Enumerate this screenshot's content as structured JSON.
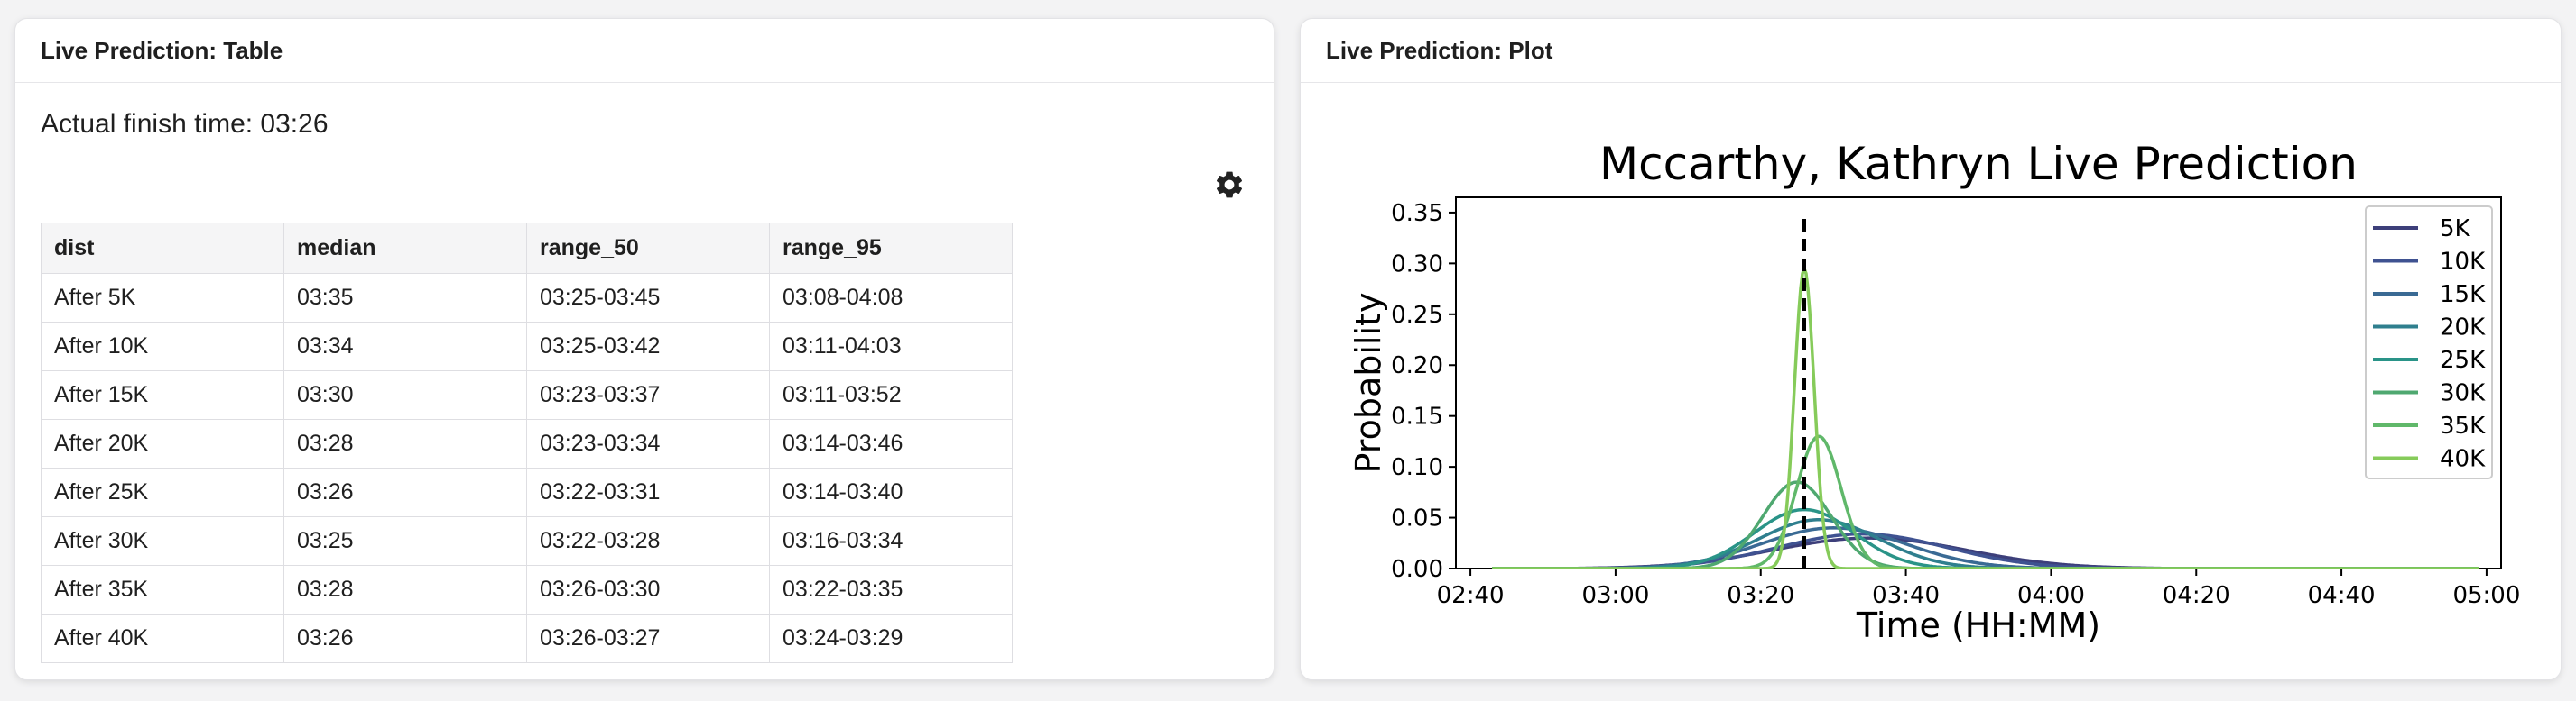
{
  "table_panel": {
    "title": "Live Prediction: Table",
    "actual_finish": "Actual finish time: 03:26",
    "settings_icon": "gear-icon",
    "columns": [
      "dist",
      "median",
      "range_50",
      "range_95"
    ],
    "rows": [
      [
        "After 5K",
        "03:35",
        "03:25-03:45",
        "03:08-04:08"
      ],
      [
        "After 10K",
        "03:34",
        "03:25-03:42",
        "03:11-04:03"
      ],
      [
        "After 15K",
        "03:30",
        "03:23-03:37",
        "03:11-03:52"
      ],
      [
        "After 20K",
        "03:28",
        "03:23-03:34",
        "03:14-03:46"
      ],
      [
        "After 25K",
        "03:26",
        "03:22-03:31",
        "03:14-03:40"
      ],
      [
        "After 30K",
        "03:25",
        "03:22-03:28",
        "03:16-03:34"
      ],
      [
        "After 35K",
        "03:28",
        "03:26-03:30",
        "03:22-03:35"
      ],
      [
        "After 40K",
        "03:26",
        "03:26-03:27",
        "03:24-03:29"
      ]
    ]
  },
  "plot_panel": {
    "title": "Live Prediction: Plot"
  },
  "chart_data": {
    "type": "line",
    "title": "Mccarthy, Kathryn Live Prediction",
    "xlabel": "Time (HH:MM)",
    "ylabel": "Probability",
    "x_unit": "minutes",
    "xlim": [
      158,
      302
    ],
    "ylim": [
      0,
      0.365
    ],
    "x_ticks": [
      160,
      180,
      200,
      220,
      240,
      260,
      280,
      300
    ],
    "x_tick_labels": [
      "02:40",
      "03:00",
      "03:20",
      "03:40",
      "04:00",
      "04:20",
      "04:40",
      "05:00"
    ],
    "y_ticks": [
      0,
      0.05,
      0.1,
      0.15,
      0.2,
      0.25,
      0.3,
      0.35
    ],
    "y_tick_labels": [
      "0.00",
      "0.05",
      "0.10",
      "0.15",
      "0.20",
      "0.25",
      "0.30",
      "0.35"
    ],
    "x_range": [
      163,
      299
    ],
    "actual_finish": 206,
    "actual_line_ymax": 0.35,
    "grid": false,
    "legend_position": "top-right",
    "series": [
      {
        "name": "5K",
        "color": "#3d3f7a",
        "center": 215,
        "peak": 0.03
      },
      {
        "name": "10K",
        "color": "#3f5291",
        "center": 214,
        "peak": 0.034
      },
      {
        "name": "15K",
        "color": "#3a6a94",
        "center": 210,
        "peak": 0.04
      },
      {
        "name": "20K",
        "color": "#2f7f8e",
        "center": 208,
        "peak": 0.048
      },
      {
        "name": "25K",
        "color": "#2a9488",
        "center": 206,
        "peak": 0.058
      },
      {
        "name": "30K",
        "color": "#4fa870",
        "center": 205,
        "peak": 0.085
      },
      {
        "name": "35K",
        "color": "#60b86a",
        "center": 208,
        "peak": 0.13
      },
      {
        "name": "40K",
        "color": "#86cb5a",
        "center": 206,
        "peak": 0.295
      }
    ]
  }
}
